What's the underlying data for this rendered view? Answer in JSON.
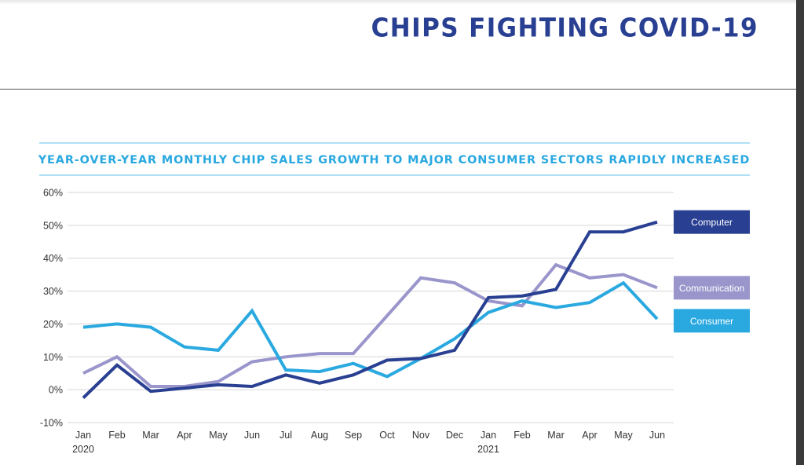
{
  "page": {
    "title": "CHIPS FIGHTING COVID-19"
  },
  "chart_data": {
    "type": "line",
    "title": "YEAR-OVER-YEAR MONTHLY CHIP SALES GROWTH TO MAJOR CONSUMER SECTORS RAPIDLY INCREASED",
    "xlabel": "",
    "ylabel": "",
    "categories": [
      "Jan",
      "Feb",
      "Mar",
      "Apr",
      "May",
      "Jun",
      "Jul",
      "Aug",
      "Sep",
      "Oct",
      "Nov",
      "Dec",
      "Jan",
      "Feb",
      "Mar",
      "Apr",
      "May",
      "Jun"
    ],
    "year_labels": [
      {
        "index": 0,
        "label": "2020"
      },
      {
        "index": 12,
        "label": "2021"
      }
    ],
    "y_ticks": [
      "-10%",
      "0%",
      "10%",
      "20%",
      "30%",
      "40%",
      "50%",
      "60%"
    ],
    "ylim": [
      -10,
      60
    ],
    "y_unit": "%",
    "grid": true,
    "legend_position": "right",
    "series": [
      {
        "name": "Communication",
        "color": "#9a96cc",
        "values": [
          5,
          10,
          1,
          1,
          2.5,
          8.5,
          10,
          11,
          11,
          22.5,
          34,
          32.5,
          27,
          25.5,
          38,
          34,
          35,
          31
        ]
      },
      {
        "name": "Consumer",
        "color": "#2aa9e0",
        "values": [
          19,
          20,
          19,
          13,
          12,
          24,
          6,
          5.5,
          8,
          4,
          9.5,
          15.5,
          23.5,
          27,
          25,
          26.5,
          32.5,
          21.5
        ]
      },
      {
        "name": "Computer",
        "color": "#283f92",
        "values": [
          -2.5,
          7.5,
          -0.5,
          0.5,
          1.5,
          1,
          4.5,
          2,
          4.5,
          9,
          9.5,
          12,
          28,
          28.5,
          30.5,
          48,
          48,
          51
        ]
      }
    ]
  }
}
